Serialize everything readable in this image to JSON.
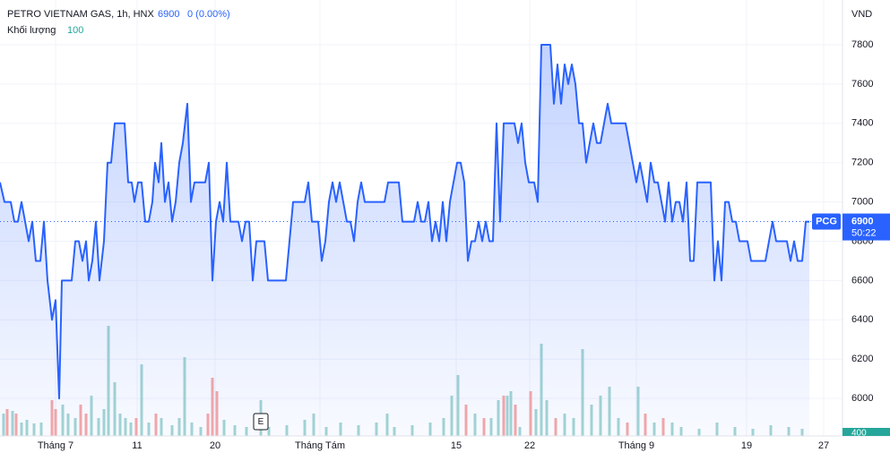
{
  "chart_data": {
    "type": "area",
    "title": "PETRO VIETNAM GAS, 1h, HNX",
    "last_price": 6900,
    "change": "0 (0.00%)",
    "currency": "VND",
    "symbol": "PCG",
    "countdown": "50:22",
    "volume_label": "Khối lượng",
    "volume_legend_value": 100,
    "volume_tag": 400,
    "event_marker": "E",
    "color": "#2962ff",
    "grid": true,
    "xlim": [
      0,
      940
    ],
    "ylim": [
      5809,
      8028
    ],
    "y2lim": [
      0,
      19480
    ],
    "yticks": [
      6000,
      6200,
      6400,
      6600,
      6800,
      7000,
      7200,
      7400,
      7600,
      7800
    ],
    "xticks": [
      {
        "value": 62,
        "label": "Tháng 7"
      },
      {
        "value": 153,
        "label": "11"
      },
      {
        "value": 240,
        "label": "20"
      },
      {
        "value": 357,
        "label": "Tháng Tám"
      },
      {
        "value": 509,
        "label": "15"
      },
      {
        "value": 591,
        "label": "22"
      },
      {
        "value": 710,
        "label": "Tháng 9"
      },
      {
        "value": 833,
        "label": "19"
      },
      {
        "value": 919,
        "label": "27"
      }
    ],
    "series": [
      {
        "name": "PCG",
        "color": "#2962ff",
        "x": [
          0,
          5,
          12,
          16,
          20,
          24,
          28,
          32,
          36,
          40,
          45,
          49,
          53,
          58,
          62,
          66,
          69,
          80,
          84,
          88,
          92,
          96,
          99,
          103,
          107,
          111,
          116,
          120,
          124,
          128,
          139,
          143,
          147,
          150,
          154,
          158,
          162,
          166,
          170,
          173,
          177,
          180,
          184,
          188,
          192,
          196,
          200,
          204,
          209,
          213,
          217,
          229,
          233,
          237,
          241,
          245,
          249,
          253,
          257,
          266,
          270,
          274,
          278,
          282,
          286,
          295,
          299,
          319,
          323,
          327,
          340,
          344,
          348,
          355,
          359,
          363,
          367,
          371,
          375,
          379,
          383,
          387,
          391,
          395,
          399,
          403,
          407,
          429,
          433,
          445,
          449,
          462,
          466,
          470,
          474,
          478,
          482,
          486,
          490,
          494,
          498,
          502,
          510,
          514,
          518,
          522,
          526,
          530,
          534,
          538,
          542,
          546,
          550,
          554,
          558,
          562,
          574,
          578,
          582,
          586,
          590,
          596,
          600,
          604,
          614,
          618,
          622,
          626,
          630,
          634,
          638,
          642,
          646,
          650,
          654,
          658,
          662,
          666,
          670,
          674,
          678,
          682,
          698,
          702,
          706,
          710,
          714,
          718,
          722,
          726,
          730,
          734,
          738,
          742,
          746,
          750,
          754,
          758,
          762,
          766,
          770,
          774,
          778,
          793,
          797,
          801,
          805,
          809,
          813,
          817,
          821,
          825,
          834,
          838,
          854,
          858,
          862,
          866,
          878,
          882,
          886,
          890,
          895,
          899,
          903
        ],
        "values": [
          7100,
          7000,
          7000,
          6900,
          6900,
          7000,
          6900,
          6800,
          6900,
          6700,
          6700,
          6900,
          6600,
          6400,
          6500,
          6000,
          6600,
          6600,
          6800,
          6800,
          6700,
          6800,
          6600,
          6700,
          6900,
          6600,
          6800,
          7200,
          7200,
          7400,
          7400,
          7100,
          7100,
          7000,
          7100,
          7100,
          6900,
          6900,
          7000,
          7200,
          7100,
          7300,
          7000,
          7100,
          6900,
          7000,
          7200,
          7300,
          7500,
          7000,
          7100,
          7100,
          7200,
          6600,
          6900,
          7000,
          6900,
          7200,
          6900,
          6900,
          6800,
          6900,
          6900,
          6600,
          6800,
          6800,
          6600,
          6600,
          6800,
          7000,
          7000,
          7100,
          6900,
          6900,
          6700,
          6800,
          7000,
          7100,
          7000,
          7100,
          7000,
          6900,
          6900,
          6800,
          7000,
          7100,
          7000,
          7000,
          7100,
          7100,
          6900,
          6900,
          7000,
          6900,
          6900,
          7000,
          6800,
          6900,
          6800,
          7000,
          6800,
          7000,
          7200,
          7200,
          7100,
          6700,
          6800,
          6800,
          6900,
          6800,
          6900,
          6800,
          6800,
          7400,
          6900,
          7400,
          7400,
          7300,
          7400,
          7200,
          7100,
          7100,
          7000,
          7800,
          7800,
          7500,
          7700,
          7500,
          7700,
          7600,
          7700,
          7600,
          7400,
          7400,
          7200,
          7300,
          7400,
          7300,
          7300,
          7400,
          7500,
          7400,
          7400,
          7300,
          7200,
          7100,
          7200,
          7100,
          7000,
          7200,
          7100,
          7100,
          7000,
          6900,
          7100,
          6900,
          7000,
          7000,
          6900,
          7100,
          6700,
          6700,
          7100,
          7100,
          6600,
          6800,
          6600,
          7000,
          7000,
          6900,
          6900,
          6800,
          6800,
          6700,
          6700,
          6800,
          6900,
          6800,
          6800,
          6700,
          6800,
          6700,
          6700,
          6900,
          6900
        ]
      }
    ],
    "volume": {
      "x": [
        4,
        8,
        14,
        18,
        24,
        30,
        38,
        46,
        58,
        62,
        70,
        76,
        84,
        90,
        96,
        102,
        110,
        116,
        121,
        128,
        134,
        140,
        146,
        152,
        158,
        166,
        174,
        180,
        192,
        200,
        206,
        214,
        224,
        232,
        237,
        242,
        250,
        262,
        275,
        291,
        300,
        320,
        340,
        350,
        364,
        380,
        400,
        420,
        432,
        440,
        460,
        480,
        495,
        504,
        511,
        520,
        530,
        540,
        548,
        556,
        562,
        566,
        570,
        575,
        580,
        592,
        598,
        604,
        610,
        620,
        630,
        640,
        650,
        660,
        670,
        680,
        690,
        700,
        712,
        720,
        730,
        740,
        750,
        760,
        780,
        800,
        820,
        840,
        860,
        880,
        895
      ],
      "values": [
        1000,
        1200,
        1120,
        1000,
        600,
        720,
        560,
        600,
        1600,
        1200,
        1400,
        1000,
        800,
        1400,
        1000,
        1800,
        800,
        1200,
        4920,
        2400,
        1000,
        800,
        600,
        800,
        3200,
        600,
        1000,
        800,
        480,
        800,
        3520,
        600,
        400,
        1000,
        2600,
        2000,
        720,
        480,
        400,
        1600,
        400,
        480,
        720,
        1000,
        400,
        600,
        480,
        600,
        1000,
        400,
        480,
        600,
        800,
        1800,
        2720,
        1400,
        1000,
        800,
        800,
        1600,
        1800,
        1800,
        2000,
        1400,
        400,
        2000,
        1200,
        4120,
        1600,
        800,
        1000,
        800,
        3880,
        1400,
        1800,
        2200,
        800,
        600,
        2200,
        1000,
        600,
        800,
        600,
        400,
        320,
        600,
        400,
        320,
        480,
        400,
        320
      ],
      "colors": [
        "#a5d6d2",
        "#f7a9a7",
        "#a5d6d2",
        "#f7a9a7",
        "#a5d6d2",
        "#a5d6d2",
        "#a5d6d2",
        "#a5d6d2",
        "#f7a9a7",
        "#f7a9a7",
        "#a5d6d2",
        "#a5d6d2",
        "#a5d6d2",
        "#f7a9a7",
        "#f7a9a7",
        "#a5d6d2",
        "#a5d6d2",
        "#a5d6d2",
        "#a5d6d2",
        "#a5d6d2",
        "#a5d6d2",
        "#a5d6d2",
        "#a5d6d2",
        "#f7a9a7",
        "#a5d6d2",
        "#a5d6d2",
        "#f7a9a7",
        "#a5d6d2",
        "#a5d6d2",
        "#a5d6d2",
        "#a5d6d2",
        "#a5d6d2",
        "#a5d6d2",
        "#f7a9a7",
        "#f7a9a7",
        "#f7a9a7",
        "#a5d6d2",
        "#a5d6d2",
        "#a5d6d2",
        "#a5d6d2",
        "#a5d6d2",
        "#a5d6d2",
        "#a5d6d2",
        "#a5d6d2",
        "#a5d6d2",
        "#a5d6d2",
        "#a5d6d2",
        "#a5d6d2",
        "#a5d6d2",
        "#a5d6d2",
        "#a5d6d2",
        "#a5d6d2",
        "#a5d6d2",
        "#a5d6d2",
        "#a5d6d2",
        "#f7a9a7",
        "#a5d6d2",
        "#f7a9a7",
        "#a5d6d2",
        "#a5d6d2",
        "#f7a9a7",
        "#a5d6d2",
        "#a5d6d2",
        "#f7a9a7",
        "#a5d6d2",
        "#f7a9a7",
        "#a5d6d2",
        "#a5d6d2",
        "#a5d6d2",
        "#f7a9a7",
        "#a5d6d2",
        "#a5d6d2",
        "#a5d6d2",
        "#a5d6d2",
        "#a5d6d2",
        "#a5d6d2",
        "#a5d6d2",
        "#f7a9a7",
        "#a5d6d2",
        "#f7a9a7",
        "#a5d6d2",
        "#f7a9a7",
        "#a5d6d2",
        "#a5d6d2",
        "#a5d6d2",
        "#a5d6d2",
        "#a5d6d2",
        "#a5d6d2",
        "#a5d6d2",
        "#a5d6d2",
        "#a5d6d2"
      ]
    }
  }
}
